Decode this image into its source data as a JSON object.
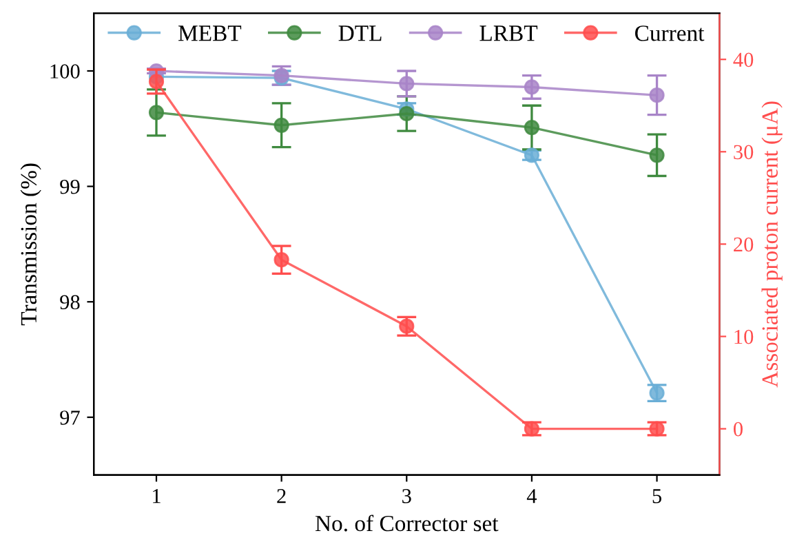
{
  "chart_data": {
    "type": "line",
    "xlabel": "No. of Corrector set",
    "ylabel": "Transmission (%)",
    "y2label": "Associated proton current (μA)",
    "x": [
      1,
      2,
      3,
      4,
      5
    ],
    "xlim": [
      0.5,
      5.5
    ],
    "xticks": [
      1,
      2,
      3,
      4,
      5
    ],
    "ylim": [
      96.5,
      100.5
    ],
    "yticks": [
      97,
      98,
      99,
      100
    ],
    "y2lim": [
      -5,
      45
    ],
    "y2ticks": [
      0,
      10,
      20,
      30,
      40
    ],
    "marker": "circle",
    "line_style": "solid",
    "grid": false,
    "legend": "top",
    "series": [
      {
        "name": "MEBT",
        "color": "#6aaed6",
        "values": [
          99.95,
          99.94,
          99.67,
          99.27,
          97.21
        ],
        "errors": [
          null,
          0.06,
          0.05,
          0.04,
          0.07
        ]
      },
      {
        "name": "DTL",
        "color": "#3f8a3f",
        "values": [
          99.64,
          99.53,
          99.63,
          99.51,
          99.27
        ],
        "errors": [
          0.2,
          0.19,
          0.15,
          0.19,
          0.18
        ]
      },
      {
        "name": "LRBT",
        "color": "#a884c8",
        "values": [
          100.0,
          99.96,
          99.89,
          99.86,
          99.79
        ],
        "errors": [
          0.02,
          0.08,
          0.11,
          0.1,
          0.17
        ]
      },
      {
        "name": "Current",
        "color": "#ff4d4d",
        "axis": "y2",
        "values": [
          37.6,
          18.3,
          11.1,
          0,
          0
        ],
        "errors": [
          1.3,
          1.5,
          1.0,
          0.7,
          0.7
        ]
      }
    ]
  }
}
